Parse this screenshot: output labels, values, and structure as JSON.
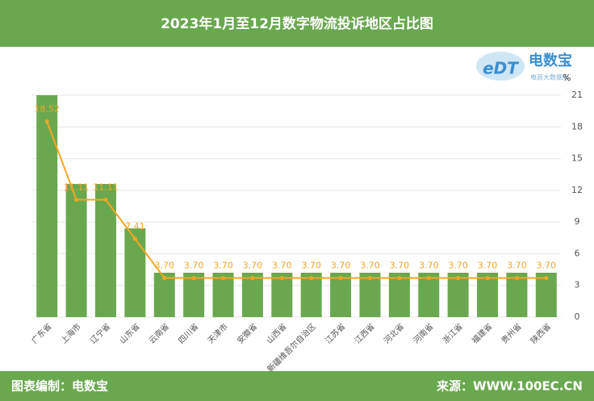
{
  "chart_data": {
    "type": "bar",
    "title": "2023年1月至12月数字物流投诉地区占比图",
    "y_label": "%",
    "categories": [
      "广东省",
      "上海市",
      "辽宁省",
      "山东省",
      "云南省",
      "四川省",
      "天津市",
      "安徽省",
      "山西省",
      "新疆维吾尔自治区",
      "江苏省",
      "江西省",
      "河北省",
      "河南省",
      "浙江省",
      "福建省",
      "贵州省",
      "陕西省"
    ],
    "series": [
      {
        "type": "bar",
        "color": "#6aa84f",
        "values": [
          21,
          12.6,
          12.6,
          8.4,
          4.2,
          4.2,
          4.2,
          4.2,
          4.2,
          4.2,
          4.2,
          4.2,
          4.2,
          4.2,
          4.2,
          4.2,
          4.2,
          4.2
        ]
      },
      {
        "type": "line",
        "color": "#f5a623",
        "values": [
          18.52,
          11.11,
          11.11,
          7.41,
          3.7,
          3.7,
          3.7,
          3.7,
          3.7,
          3.7,
          3.7,
          3.7,
          3.7,
          3.7,
          3.7,
          3.7,
          3.7,
          3.7
        ],
        "value_labels": [
          "18.52",
          "11.11",
          "11.11",
          "7.41",
          "3.70",
          "3.70",
          "3.70",
          "3.70",
          "3.70",
          "3.70",
          "3.70",
          "3.70",
          "3.70",
          "3.70",
          "3.70",
          "3.70",
          "3.70",
          "3.70"
        ]
      }
    ],
    "ylim": [
      0,
      21
    ],
    "yticks": [
      0,
      3,
      6,
      9,
      12,
      15,
      18,
      21
    ],
    "grid": true
  },
  "logo": {
    "mark": "eDT",
    "name": "电数宝",
    "tagline": "电商大数据库"
  },
  "footer": {
    "left": "图表编制：电数宝",
    "right": "来源：WWW.100EC.CN"
  }
}
